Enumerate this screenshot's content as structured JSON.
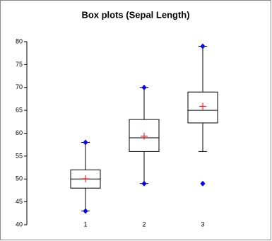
{
  "chart_data": {
    "type": "box",
    "title": "Box plots (Sepal Length)",
    "categories": [
      "1",
      "2",
      "3"
    ],
    "boxes": [
      {
        "whisker_low": 43,
        "q1": 48,
        "median": 50,
        "q3": 52,
        "whisker_high": 58,
        "mean": 50.06,
        "points": [
          58,
          43
        ]
      },
      {
        "whisker_low": 49,
        "q1": 56,
        "median": 59,
        "q3": 63,
        "whisker_high": 70,
        "mean": 59.36,
        "points": [
          70,
          49
        ]
      },
      {
        "whisker_low": 56,
        "q1": 62.25,
        "median": 65,
        "q3": 69,
        "whisker_high": 79,
        "mean": 65.88,
        "points": [
          79,
          49
        ]
      }
    ],
    "box_color": "#000000",
    "mean_color": "#ff0000",
    "point_color": "#0000ff",
    "ylim": [
      40,
      80
    ],
    "yticks": [
      40,
      45,
      50,
      55,
      60,
      65,
      70,
      75,
      80
    ]
  }
}
